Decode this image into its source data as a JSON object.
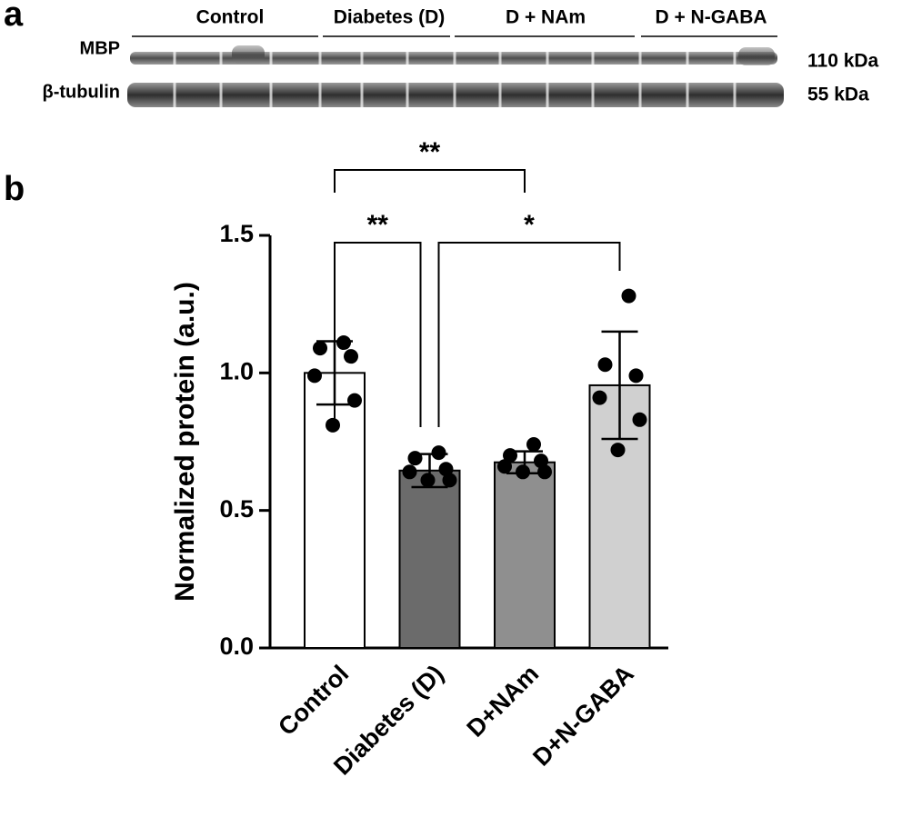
{
  "panel_labels": {
    "a": "a",
    "b": "b"
  },
  "blot": {
    "groups": [
      "Control",
      "Diabetes (D)",
      "D + NAm",
      "D + N-GABA"
    ],
    "rows": [
      {
        "protein": "MBP",
        "size": "110 kDa"
      },
      {
        "protein": "β-tubulin",
        "size": "55 kDa"
      }
    ]
  },
  "chart_data": {
    "type": "bar",
    "y_label": "Normalized protein (a.u.)",
    "categories": [
      "Control",
      "Diabetes (D)",
      "D+NAm",
      "D+N-GABA"
    ],
    "values": [
      1.0,
      0.645,
      0.675,
      0.955
    ],
    "errors": [
      0.115,
      0.06,
      0.04,
      0.195
    ],
    "colors": [
      "#ffffff",
      "#6b6b6b",
      "#8f8f8f",
      "#d0d0d0"
    ],
    "points": [
      [
        1.11,
        1.09,
        1.06,
        0.99,
        0.9,
        0.81
      ],
      [
        0.71,
        0.69,
        0.65,
        0.64,
        0.61,
        0.61
      ],
      [
        0.74,
        0.7,
        0.68,
        0.66,
        0.64,
        0.64
      ],
      [
        1.28,
        1.03,
        0.99,
        0.91,
        0.83,
        0.72
      ]
    ],
    "ylim": [
      0,
      1.5
    ],
    "yticks": [
      {
        "value": 0,
        "label": "0.0"
      },
      0.5,
      {
        "value": 1,
        "label": "1.0"
      },
      1.5
    ],
    "comparisons": [
      {
        "groups": [
          "Control",
          "Diabetes (D)"
        ],
        "label": "**"
      },
      {
        "groups": [
          "Diabetes (D)",
          "D+N-GABA"
        ],
        "label": "*"
      },
      {
        "groups": [
          "Control",
          "D+NAm"
        ],
        "label": "**"
      }
    ]
  }
}
